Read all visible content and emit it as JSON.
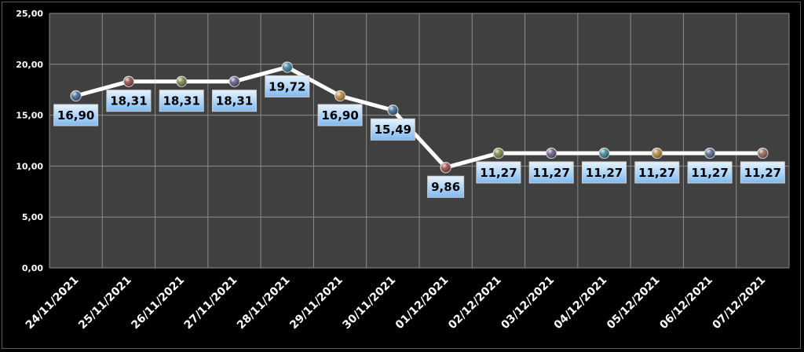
{
  "chart_data": {
    "type": "line",
    "title": "",
    "xlabel": "",
    "ylabel": "",
    "ylim": [
      0,
      25
    ],
    "yticks": [
      "0,00",
      "5,00",
      "10,00",
      "15,00",
      "20,00",
      "25,00"
    ],
    "grid": true,
    "legend": "none",
    "categories": [
      "24/11/2021",
      "25/11/2021",
      "26/11/2021",
      "27/11/2021",
      "28/11/2021",
      "29/11/2021",
      "30/11/2021",
      "01/12/2021",
      "02/12/2021",
      "03/12/2021",
      "04/12/2021",
      "05/12/2021",
      "06/12/2021",
      "07/12/2021"
    ],
    "series": [
      {
        "values": [
          16.9,
          18.31,
          18.31,
          18.31,
          19.72,
          16.9,
          15.49,
          9.86,
          11.27,
          11.27,
          11.27,
          11.27,
          11.27,
          11.27
        ],
        "labels": [
          "16,90",
          "18,31",
          "18,31",
          "18,31",
          "19,72",
          "16,90",
          "15,49",
          "9,86",
          "11,27",
          "11,27",
          "11,27",
          "11,27",
          "11,27",
          "11,27"
        ],
        "line_color": "#ffffff"
      }
    ],
    "marker_colors": [
      "#2f5a8a",
      "#8a3b3b",
      "#6f7a3a",
      "#5a4a7a",
      "#2f7a8a",
      "#b07a2a",
      "#2f5a8a",
      "#8a3b3b",
      "#6f7a3a",
      "#5a4a7a",
      "#2f7a8a",
      "#b07a2a",
      "#4a5a7a",
      "#8a5a4a"
    ],
    "colors": {
      "background": "#000000",
      "plot_area": "#404040",
      "gridline": "#8c8c8c",
      "label_box_top": "#e6f3ff",
      "label_box_bottom": "#7fbaf0"
    }
  }
}
